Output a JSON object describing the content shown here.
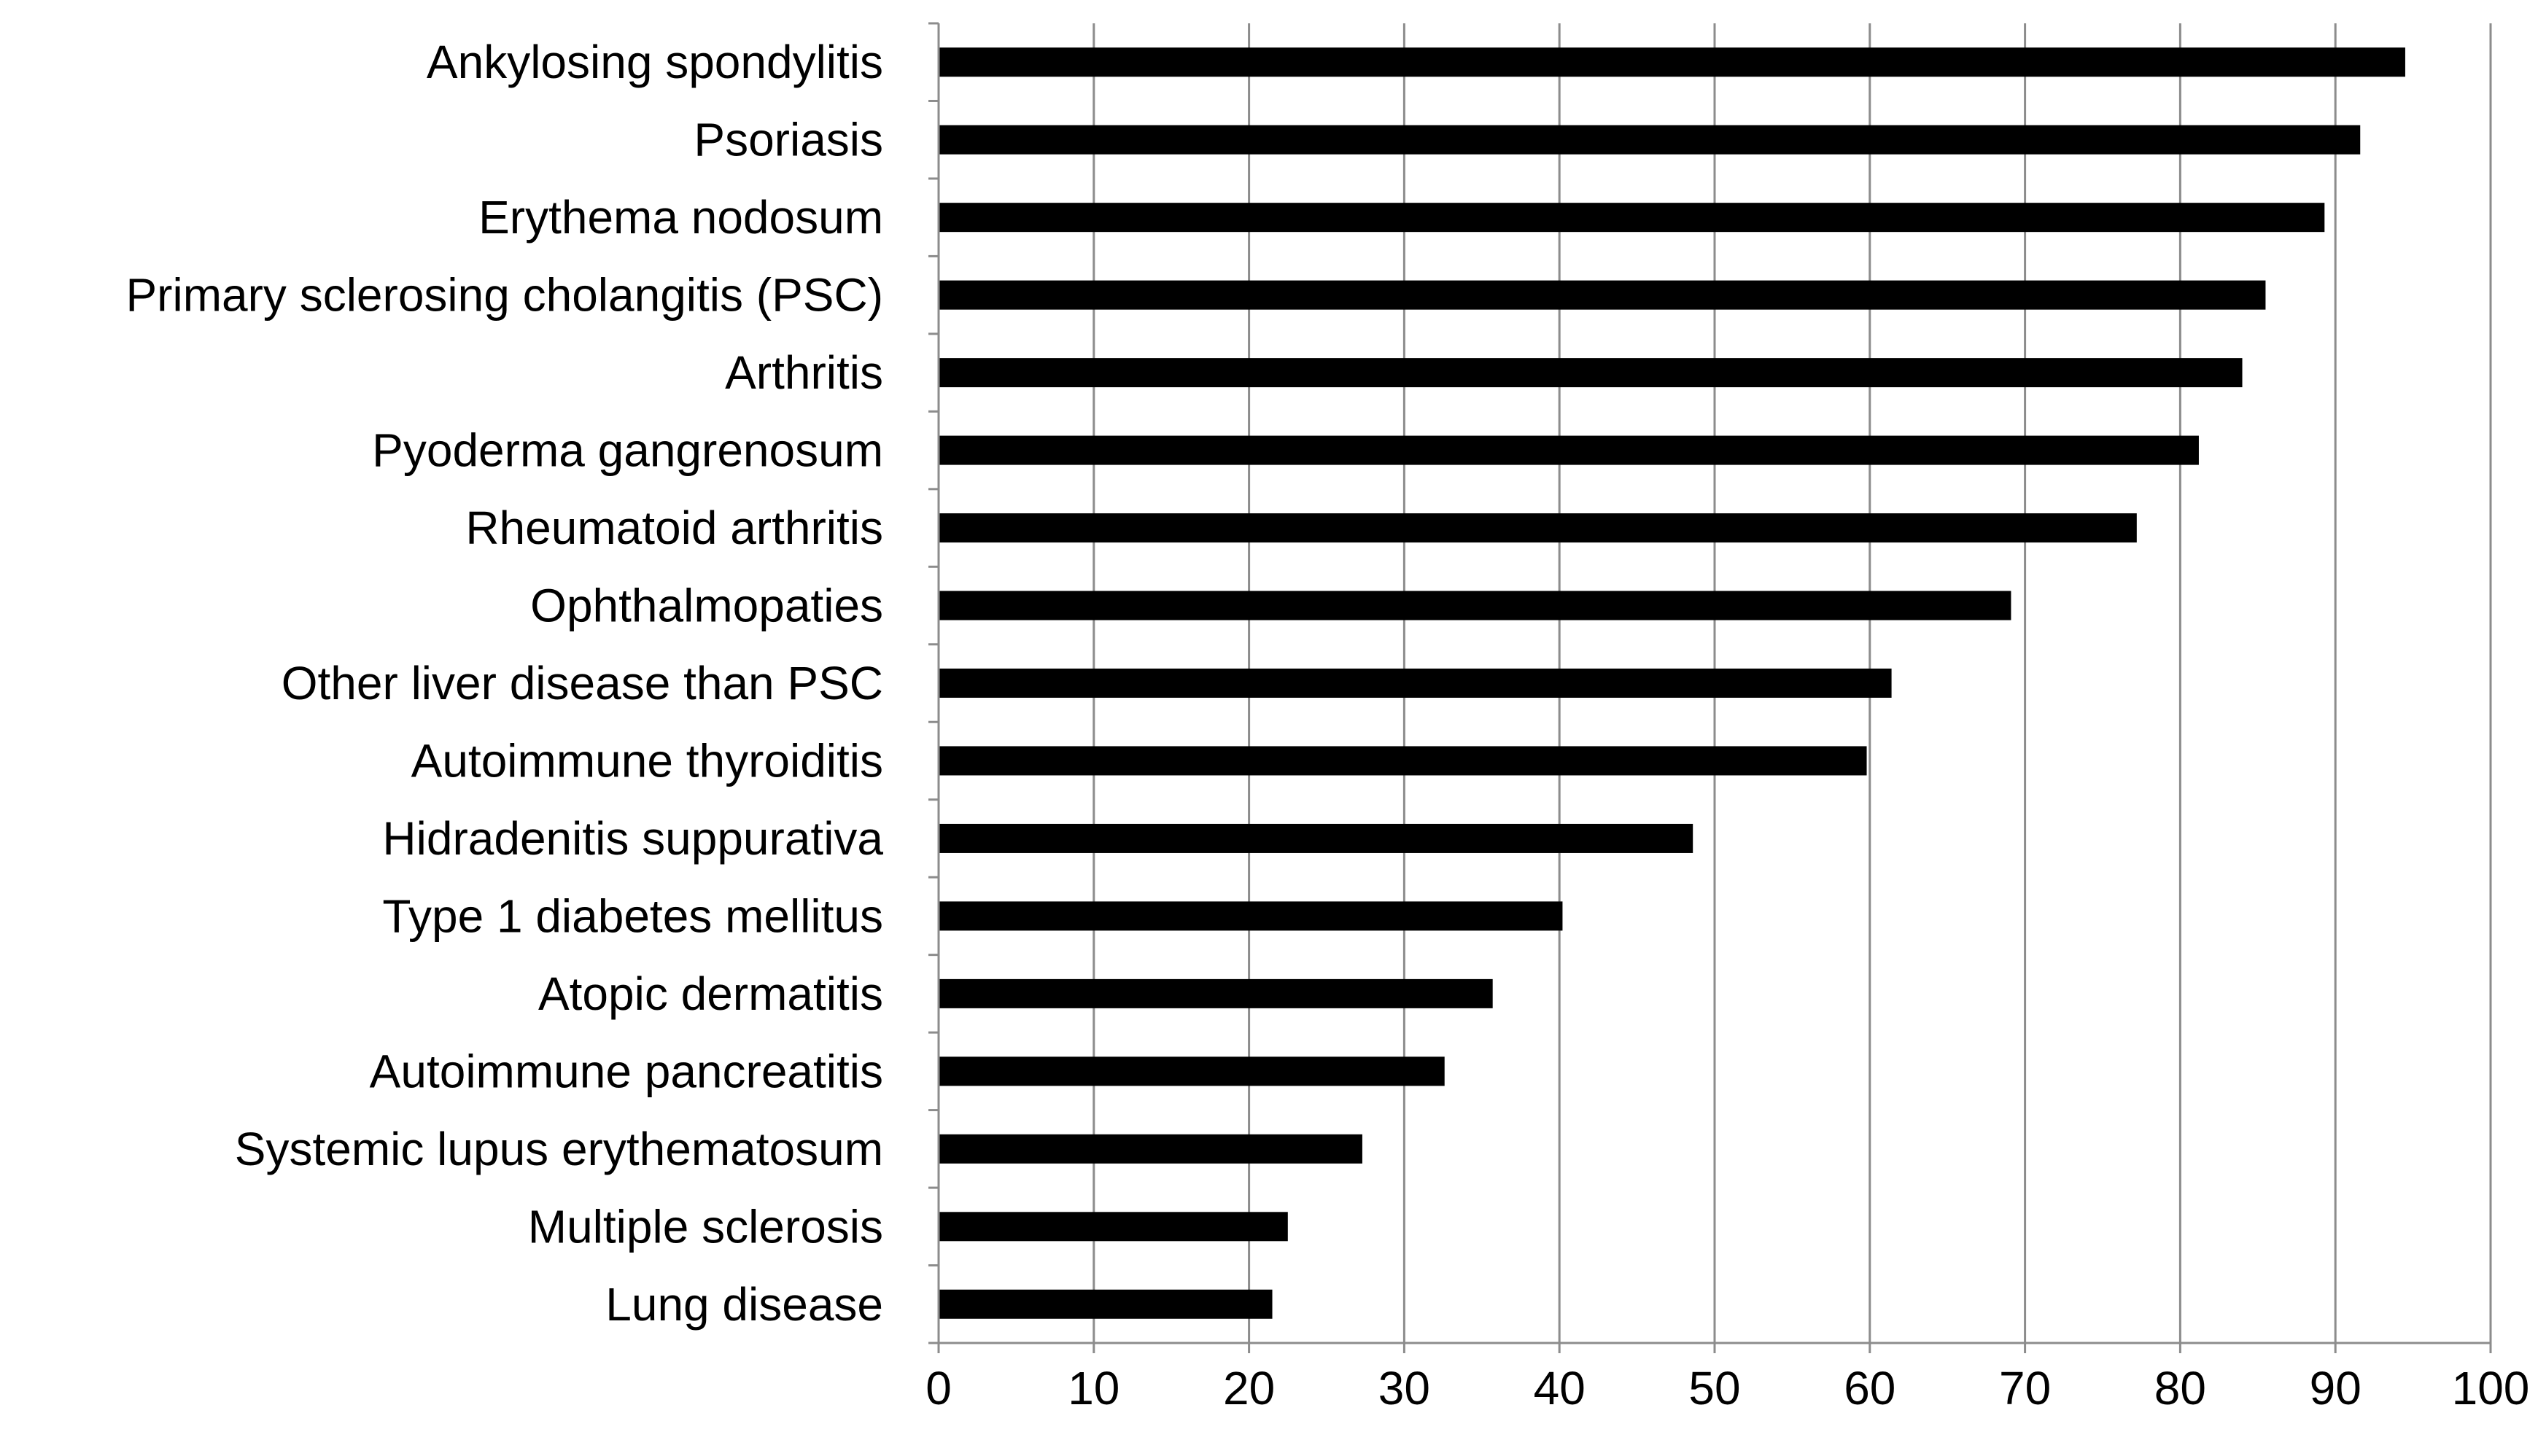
{
  "chart_data": {
    "type": "bar",
    "orientation": "horizontal",
    "categories": [
      "Ankylosing spondylitis",
      "Psoriasis",
      "Erythema nodosum",
      "Primary sclerosing cholangitis (PSC)",
      "Arthritis",
      "Pyoderma gangrenosum",
      "Rheumatoid arthritis",
      "Ophthalmopaties",
      "Other liver disease than PSC",
      "Autoimmune thyroiditis",
      "Hidradenitis suppurativa",
      "Type 1 diabetes mellitus",
      "Atopic dermatitis",
      "Autoimmune pancreatitis",
      "Systemic lupus erythematosum",
      "Multiple sclerosis",
      "Lung disease"
    ],
    "values": [
      94.5,
      91.6,
      89.3,
      85.5,
      84.0,
      81.2,
      77.2,
      69.1,
      61.4,
      59.8,
      48.6,
      40.2,
      35.7,
      32.6,
      27.3,
      22.5,
      21.5
    ],
    "xlim": [
      0,
      100
    ],
    "xticks": [
      "0",
      "10",
      "20",
      "30",
      "40",
      "50",
      "60",
      "70",
      "80",
      "90",
      "100"
    ],
    "title": "",
    "xlabel": "",
    "ylabel": "",
    "grid": "vertical",
    "bar_color": "#000000",
    "grid_color": "#8c8c8c"
  }
}
